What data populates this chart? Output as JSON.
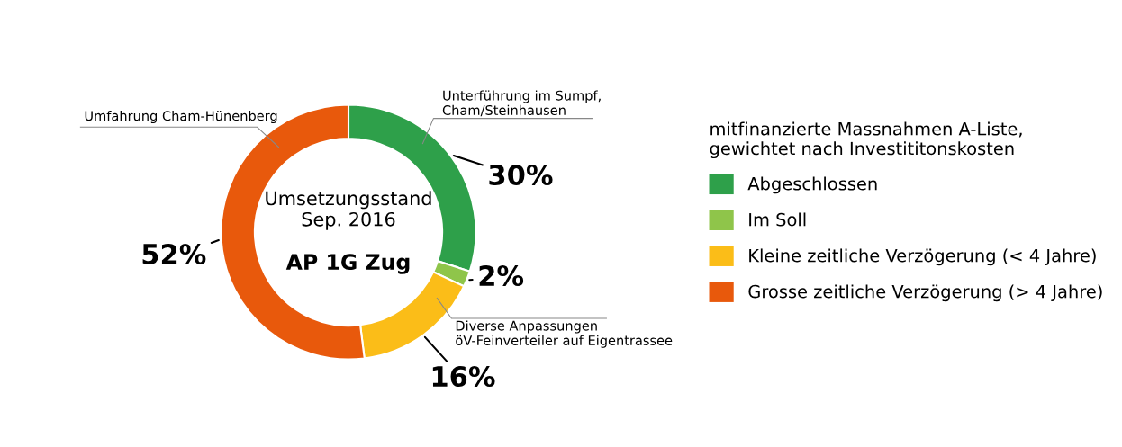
{
  "chart_data": {
    "type": "donut",
    "title": "Umsetzungsstand\nSep. 2016",
    "subtitle": "AP 1G Zug",
    "legend_title": "mitfinanzierte Massnahmen A-Liste,\ngewichtet nach Investititonskosten",
    "categories": [
      "Abgeschlossen",
      "Im Soll",
      "Kleine zeitliche Verzögerung (< 4 Jahre)",
      "Grosse zeitliche Verzögerung (> 4 Jahre)"
    ],
    "values": [
      30,
      2,
      16,
      52
    ],
    "value_labels": [
      "30%",
      "2%",
      "16%",
      "52%"
    ],
    "colors": [
      "#2ea04a",
      "#8fc54a",
      "#fbbd18",
      "#e8590c"
    ],
    "annotations": [
      "Unterführung im Sumpf,\nCham/Steinhausen",
      "Umfahrung Cham-Hünenberg",
      "Diverse Anpassungen\nöV-Feinverteiler auf Eigentrassee"
    ],
    "legend": "right"
  }
}
